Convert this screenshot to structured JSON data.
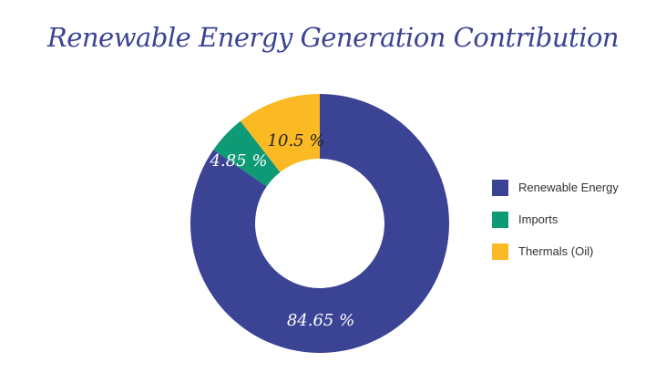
{
  "chart_data": {
    "type": "pie",
    "donut": true,
    "title": "Renewable Energy Generation Contribution",
    "categories": [
      "Renewable Energy",
      "Imports",
      "Thermals (Oil)"
    ],
    "values": [
      84.65,
      4.85,
      10.5
    ],
    "labels": [
      "84.65 %",
      "4.85 %",
      "10.5 %"
    ],
    "colors": [
      "#3b4394",
      "#0e9a74",
      "#fbb923"
    ],
    "label_colors": [
      "#ffffff",
      "#ffffff",
      "#222222"
    ],
    "legend_position": "right"
  }
}
